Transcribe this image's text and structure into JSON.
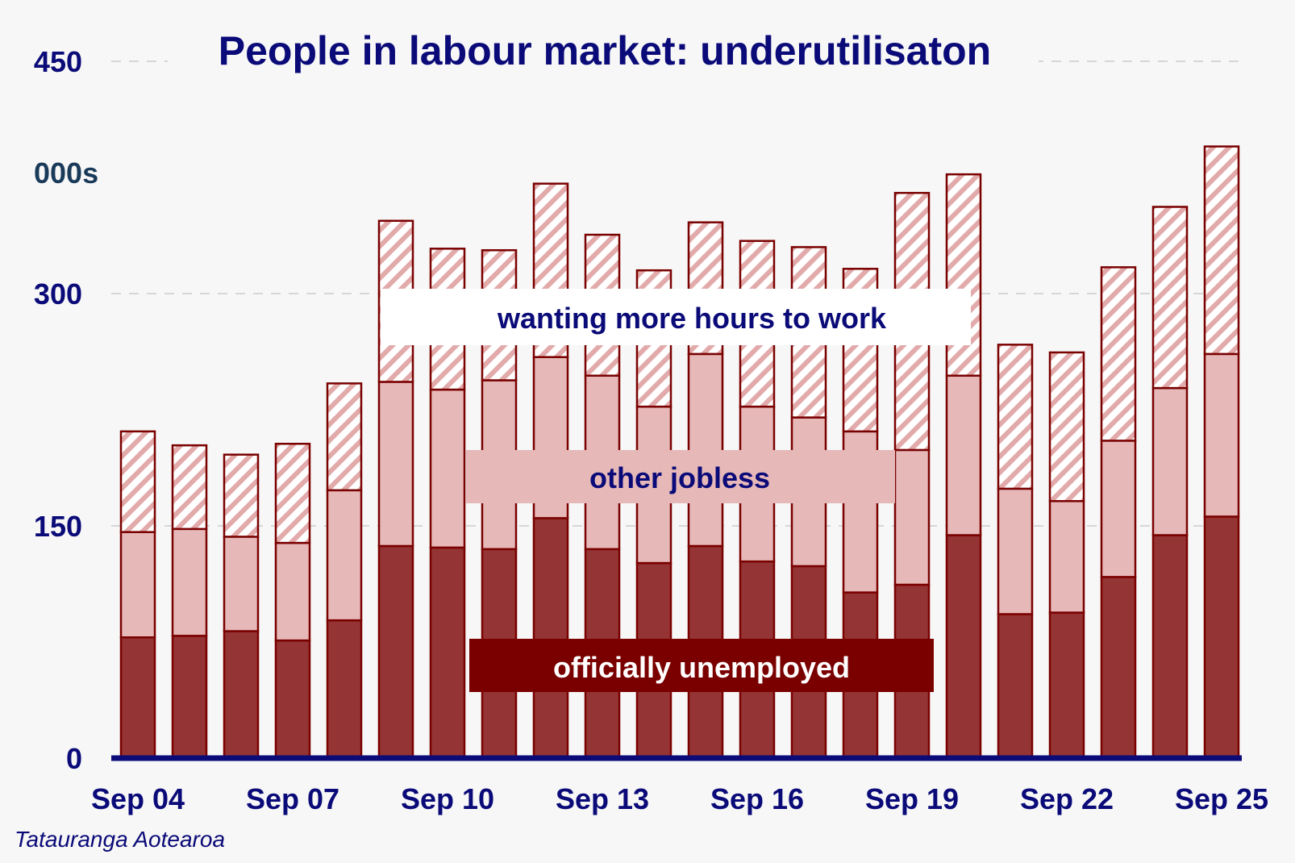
{
  "chart_data": {
    "type": "bar",
    "stacked": true,
    "title": "People in labour market: underutilisaton",
    "unit_label": "000s",
    "ylim": [
      0,
      450
    ],
    "yticks": [
      0,
      150,
      300,
      450
    ],
    "grid": true,
    "source": "Tatauranga Aotearoa",
    "x_tick_labels": [
      "Sep 04",
      "Sep 07",
      "Sep 10",
      "Sep 13",
      "Sep 16",
      "Sep 19",
      "Sep 22",
      "Sep 25"
    ],
    "categories": [
      "Sep 04",
      "Sep 05",
      "Sep 06",
      "Sep 07",
      "Sep 08",
      "Sep 09",
      "Sep 10",
      "Sep 11",
      "Sep 12",
      "Sep 13",
      "Sep 14",
      "Sep 15",
      "Sep 16",
      "Sep 17",
      "Sep 18",
      "Sep 19",
      "Sep 20",
      "Sep 21",
      "Sep 22",
      "Sep 23",
      "Sep 24",
      "Sep 25"
    ],
    "series": [
      {
        "name": "officially unemployed",
        "color": "#943434",
        "values": [
          78,
          79,
          82,
          76,
          89,
          137,
          136,
          135,
          155,
          135,
          126,
          137,
          127,
          124,
          107,
          112,
          144,
          93,
          94,
          117,
          144,
          156
        ]
      },
      {
        "name": "other jobless",
        "color": "#e6b8b8",
        "values": [
          68,
          69,
          61,
          63,
          84,
          106,
          102,
          109,
          104,
          112,
          101,
          124,
          100,
          96,
          104,
          87,
          103,
          81,
          72,
          88,
          95,
          105
        ]
      },
      {
        "name": "wanting more hours to work",
        "color": "hatch",
        "values": [
          65,
          54,
          53,
          64,
          69,
          104,
          91,
          84,
          112,
          91,
          88,
          85,
          107,
          110,
          105,
          166,
          130,
          93,
          96,
          112,
          117,
          134
        ]
      }
    ]
  }
}
